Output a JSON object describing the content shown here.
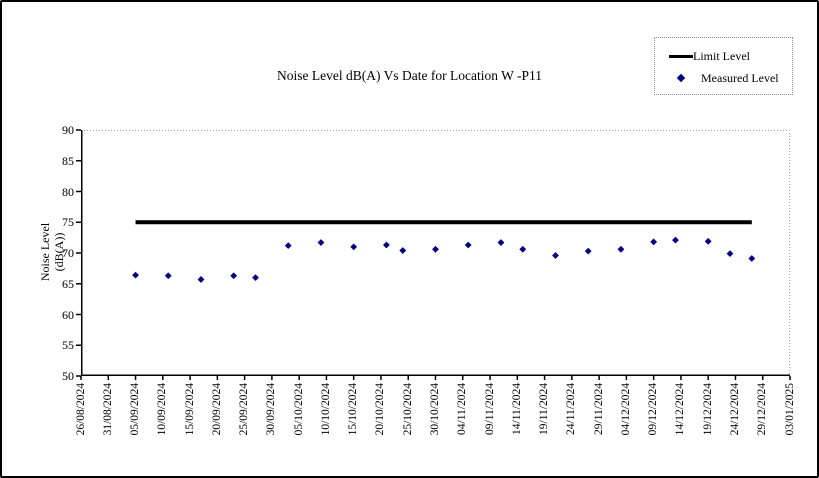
{
  "title": "Noise Level dB(A) Vs Date for Location W -P11",
  "legend": {
    "items": [
      {
        "label": "Limit Level",
        "marker": "thick-line",
        "color": "#000000"
      },
      {
        "label": "Measured Level",
        "marker": "diamond",
        "color": "#000080"
      }
    ]
  },
  "colors": {
    "limit_line": "#000000",
    "measured_point": "#000080",
    "axis": "#000000",
    "plot_frame_dotted": "#a0a0a0",
    "legend_border": "#909090",
    "figure_border": "#000000",
    "background": "#ffffff"
  },
  "chart_data": {
    "type": "scatter",
    "title": "Noise Level dB(A) Vs Date for Location W -P11",
    "xlabel": "",
    "ylabel_lines": [
      "Noise Level",
      "(dB(A))"
    ],
    "ylim": [
      50,
      90
    ],
    "yticks": [
      90,
      85,
      80,
      75,
      70,
      65,
      60,
      55,
      50
    ],
    "grid": "off",
    "legend_position": "top-right",
    "x_total_days": 130,
    "xtick_step_days": 5,
    "xtick_labels": [
      "26/08/2024",
      "31/08/2024",
      "05/09/2024",
      "10/09/2024",
      "15/09/2024",
      "20/09/2024",
      "25/09/2024",
      "30/09/2024",
      "05/10/2024",
      "10/10/2024",
      "15/10/2024",
      "20/10/2024",
      "25/10/2024",
      "30/10/2024",
      "04/11/2024",
      "09/11/2024",
      "14/11/2024",
      "19/11/2024",
      "24/11/2024",
      "29/11/2024",
      "04/12/2024",
      "09/12/2024",
      "14/12/2024",
      "19/12/2024",
      "24/12/2024",
      "29/12/2024",
      "03/01/2025"
    ],
    "series": [
      {
        "name": "Limit Level",
        "type": "line",
        "color": "#000000",
        "stroke_width": 4,
        "value": 75,
        "x_days": [
          10,
          123
        ]
      },
      {
        "name": "Measured Level",
        "type": "scatter",
        "marker": "diamond",
        "color": "#000080",
        "points": [
          {
            "date": "05/09/2024",
            "day": 10,
            "value": 66.4
          },
          {
            "date": "11/09/2024",
            "day": 16,
            "value": 66.3
          },
          {
            "date": "17/09/2024",
            "day": 22,
            "value": 65.7
          },
          {
            "date": "23/09/2024",
            "day": 28,
            "value": 66.3
          },
          {
            "date": "27/09/2024",
            "day": 32,
            "value": 66.0
          },
          {
            "date": "03/10/2024",
            "day": 38,
            "value": 71.2
          },
          {
            "date": "09/10/2024",
            "day": 44,
            "value": 71.7
          },
          {
            "date": "15/10/2024",
            "day": 50,
            "value": 71.0
          },
          {
            "date": "21/10/2024",
            "day": 56,
            "value": 71.3
          },
          {
            "date": "24/10/2024",
            "day": 59,
            "value": 70.4
          },
          {
            "date": "30/10/2024",
            "day": 65,
            "value": 70.6
          },
          {
            "date": "05/11/2024",
            "day": 71,
            "value": 71.3
          },
          {
            "date": "11/11/2024",
            "day": 77,
            "value": 71.7
          },
          {
            "date": "15/11/2024",
            "day": 81,
            "value": 70.6
          },
          {
            "date": "21/11/2024",
            "day": 87,
            "value": 69.6
          },
          {
            "date": "27/11/2024",
            "day": 93,
            "value": 70.3
          },
          {
            "date": "03/12/2024",
            "day": 99,
            "value": 70.6
          },
          {
            "date": "09/12/2024",
            "day": 105,
            "value": 71.8
          },
          {
            "date": "13/12/2024",
            "day": 109,
            "value": 72.1
          },
          {
            "date": "19/12/2024",
            "day": 115,
            "value": 71.9
          },
          {
            "date": "23/12/2024",
            "day": 119,
            "value": 69.9
          },
          {
            "date": "27/12/2024",
            "day": 123,
            "value": 69.1
          }
        ]
      }
    ]
  }
}
